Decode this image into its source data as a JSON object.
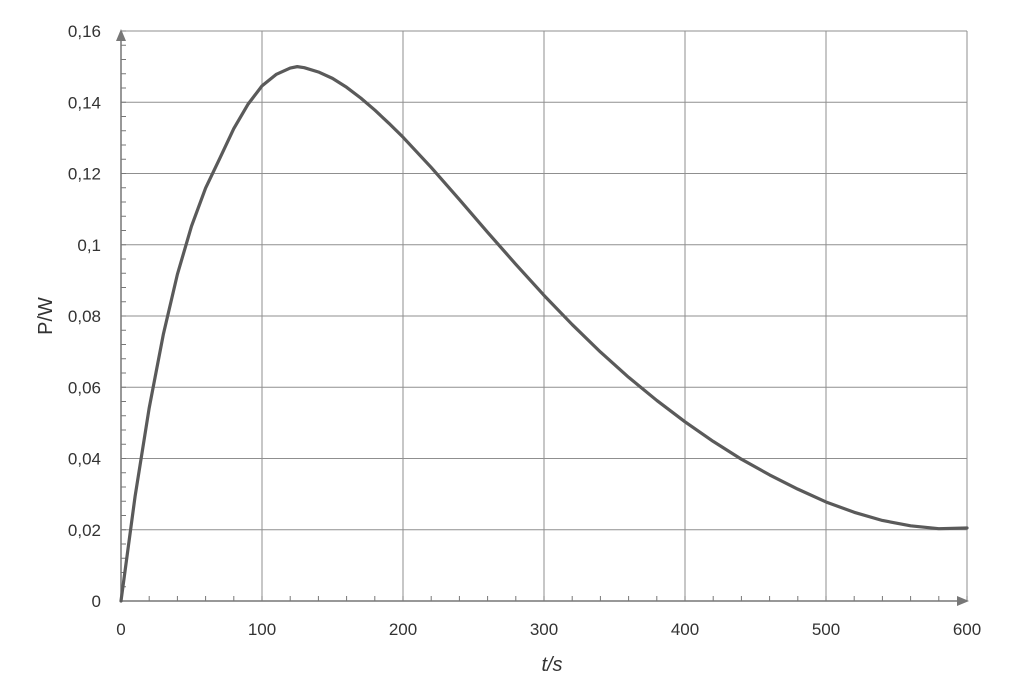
{
  "chart_data": {
    "type": "line",
    "xlabel": "t/s",
    "ylabel": "P/W",
    "xlim": [
      0,
      600
    ],
    "ylim": [
      0,
      0.16
    ],
    "x_ticks": [
      0,
      100,
      200,
      300,
      400,
      500,
      600
    ],
    "x_tick_labels": [
      "0",
      "100",
      "200",
      "300",
      "400",
      "500",
      "600"
    ],
    "y_ticks": [
      0,
      0.02,
      0.04,
      0.06,
      0.08,
      0.1,
      0.12,
      0.14,
      0.16
    ],
    "y_tick_labels": [
      "0",
      "0,02",
      "0,04",
      "0,06",
      "0,08",
      "0,1",
      "0,12",
      "0,14",
      "0,16"
    ],
    "grid": true,
    "series": [
      {
        "color": "#5a5a5a",
        "x": [
          0,
          10,
          20,
          30,
          40,
          50,
          60,
          70,
          80,
          90,
          100,
          110,
          120,
          125,
          130,
          140,
          150,
          160,
          170,
          180,
          190,
          200,
          220,
          240,
          260,
          280,
          300,
          320,
          340,
          360,
          380,
          400,
          420,
          440,
          460,
          480,
          500,
          520,
          540,
          560,
          580,
          600
        ],
        "y": [
          0,
          0.0294,
          0.0542,
          0.0748,
          0.0917,
          0.1052,
          0.1159,
          0.1242,
          0.1326,
          0.1394,
          0.1446,
          0.1478,
          0.1496,
          0.15,
          0.1497,
          0.1485,
          0.1467,
          0.1442,
          0.1412,
          0.1378,
          0.1341,
          0.1302,
          0.1217,
          0.1127,
          0.1035,
          0.0945,
          0.0858,
          0.0776,
          0.0699,
          0.0628,
          0.0563,
          0.0503,
          0.0448,
          0.0398,
          0.0354,
          0.0314,
          0.0278,
          0.0249,
          0.0226,
          0.0211,
          0.0203,
          0.0205
        ]
      }
    ]
  }
}
